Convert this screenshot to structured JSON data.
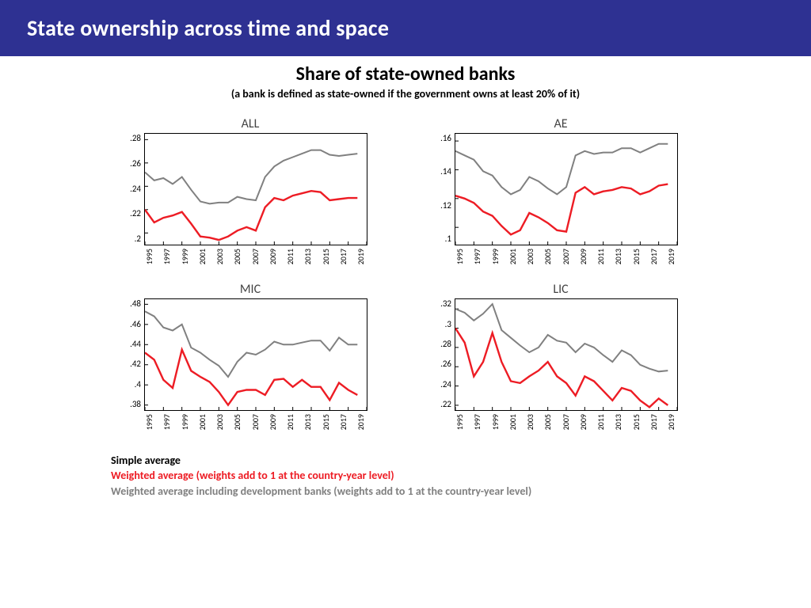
{
  "banner": {
    "title": "State ownership across time and space"
  },
  "chart_header": {
    "title": "Share of state-owned banks",
    "subtitle": "(a bank is defined as state-owned if the government owns at least 20% of it)"
  },
  "colors": {
    "red": "#ed1c24",
    "grey": "#808080",
    "axis": "#000000",
    "banner_bg": "#2e3192",
    "background": "#ffffff"
  },
  "line_width_red": 2.4,
  "line_width_grey": 2.0,
  "fontsize_panel_title": 16,
  "fontsize_y_tick": 11,
  "fontsize_x_tick": 10,
  "x": {
    "min": 1995,
    "max": 2019,
    "ticks": [
      1995,
      1997,
      1999,
      2001,
      2003,
      2005,
      2007,
      2009,
      2011,
      2013,
      2015,
      2017,
      2019
    ],
    "n_points": 24
  },
  "panels": [
    {
      "id": "ALL",
      "title": "ALL",
      "y_ticks": [
        ".2",
        ".22",
        ".24",
        ".26",
        ".28"
      ],
      "ylim": [
        0.19,
        0.285
      ],
      "grey": [
        0.252,
        0.245,
        0.247,
        0.242,
        0.248,
        0.237,
        0.227,
        0.225,
        0.226,
        0.226,
        0.231,
        0.229,
        0.228,
        0.248,
        0.257,
        0.262,
        0.265,
        0.268,
        0.271,
        0.271,
        0.267,
        0.266,
        0.267,
        0.268
      ],
      "red": [
        0.22,
        0.209,
        0.213,
        0.215,
        0.218,
        0.208,
        0.197,
        0.196,
        0.194,
        0.197,
        0.202,
        0.205,
        0.202,
        0.222,
        0.23,
        0.228,
        0.232,
        0.234,
        0.236,
        0.235,
        0.228,
        0.229,
        0.23,
        0.23
      ]
    },
    {
      "id": "AE",
      "title": "AE",
      "y_ticks": [
        ".1",
        ".12",
        ".14",
        ".16"
      ],
      "ylim": [
        0.088,
        0.165
      ],
      "grey": [
        0.153,
        0.15,
        0.147,
        0.139,
        0.136,
        0.128,
        0.123,
        0.126,
        0.135,
        0.132,
        0.127,
        0.123,
        0.128,
        0.15,
        0.153,
        0.151,
        0.152,
        0.152,
        0.155,
        0.155,
        0.152,
        0.155,
        0.158,
        0.158
      ],
      "red": [
        0.122,
        0.12,
        0.117,
        0.111,
        0.108,
        0.101,
        0.095,
        0.098,
        0.11,
        0.107,
        0.103,
        0.098,
        0.097,
        0.124,
        0.128,
        0.123,
        0.125,
        0.126,
        0.128,
        0.127,
        0.123,
        0.125,
        0.129,
        0.13
      ]
    },
    {
      "id": "MIC",
      "title": "MIC",
      "y_ticks": [
        ".38",
        ".4",
        ".42",
        ".44",
        ".46",
        ".48"
      ],
      "ylim": [
        0.375,
        0.485
      ],
      "grey": [
        0.473,
        0.468,
        0.457,
        0.454,
        0.46,
        0.437,
        0.432,
        0.425,
        0.419,
        0.408,
        0.423,
        0.432,
        0.43,
        0.435,
        0.443,
        0.44,
        0.44,
        0.442,
        0.444,
        0.444,
        0.434,
        0.447,
        0.44,
        0.44
      ],
      "red": [
        0.432,
        0.425,
        0.405,
        0.397,
        0.435,
        0.414,
        0.408,
        0.403,
        0.393,
        0.38,
        0.393,
        0.395,
        0.395,
        0.39,
        0.405,
        0.406,
        0.398,
        0.405,
        0.398,
        0.398,
        0.385,
        0.402,
        0.395,
        0.39
      ]
    },
    {
      "id": "LIC",
      "title": "LIC",
      "y_ticks": [
        ".22",
        ".24",
        ".26",
        ".28",
        ".3",
        ".32"
      ],
      "ylim": [
        0.215,
        0.33
      ],
      "grey": [
        0.32,
        0.316,
        0.308,
        0.315,
        0.325,
        0.298,
        0.29,
        0.282,
        0.275,
        0.28,
        0.293,
        0.287,
        0.285,
        0.275,
        0.284,
        0.28,
        0.272,
        0.265,
        0.277,
        0.272,
        0.262,
        0.258,
        0.255,
        0.256
      ],
      "red": [
        0.3,
        0.285,
        0.25,
        0.265,
        0.295,
        0.265,
        0.245,
        0.243,
        0.25,
        0.256,
        0.265,
        0.25,
        0.243,
        0.23,
        0.25,
        0.245,
        0.235,
        0.225,
        0.238,
        0.235,
        0.225,
        0.218,
        0.227,
        0.22
      ]
    }
  ],
  "legend": {
    "simple": "Simple average",
    "red": "Weighted average (weights add to 1 at the country-year level)",
    "grey": "Weighted average including development banks (weights add to 1 at the country-year level)"
  }
}
